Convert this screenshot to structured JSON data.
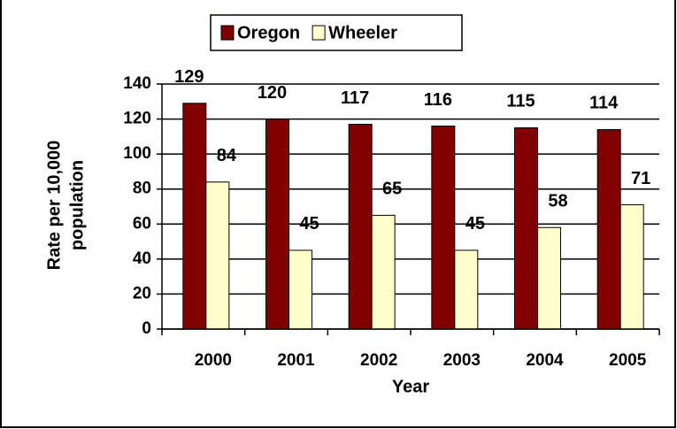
{
  "chart_data": {
    "type": "bar",
    "categories": [
      "2000",
      "2001",
      "2002",
      "2003",
      "2004",
      "2005"
    ],
    "series": [
      {
        "name": "Oregon",
        "color": "#800000",
        "values": [
          129,
          120,
          117,
          116,
          115,
          114
        ]
      },
      {
        "name": "Wheeler",
        "color": "#ffffcc",
        "values": [
          84,
          45,
          65,
          45,
          58,
          71
        ]
      }
    ],
    "x_label": "Year",
    "y_label": [
      "Rate per 10,000",
      "population"
    ],
    "ylim": [
      0,
      140
    ],
    "yticks": [
      0,
      20,
      40,
      60,
      80,
      100,
      120,
      140
    ],
    "grid": true,
    "legend": "top"
  }
}
